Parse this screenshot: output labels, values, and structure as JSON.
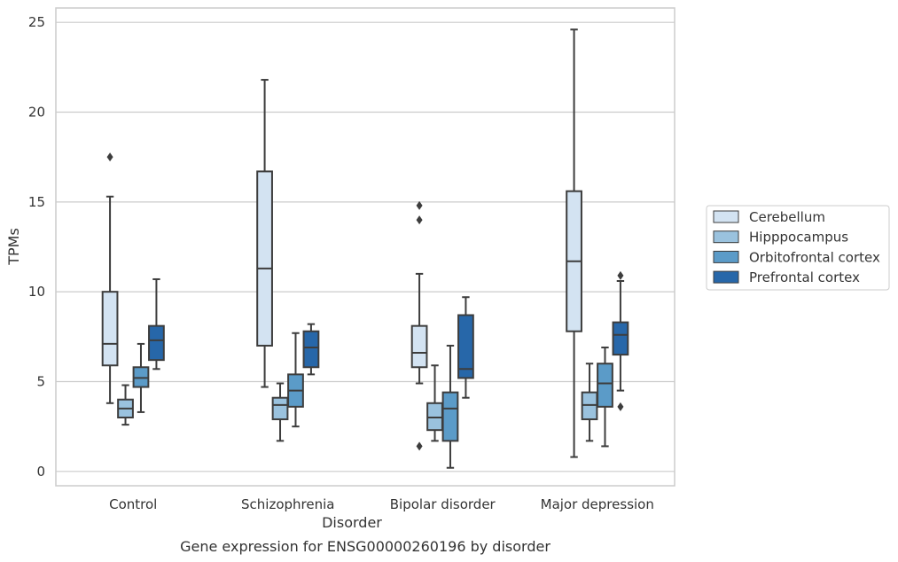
{
  "caption": "Gene expression for ENSG00000260196 by disorder",
  "chart_data": {
    "type": "box",
    "xlabel": "Disorder",
    "ylabel": "TPMs",
    "ylim": [
      -0.8,
      25.8
    ],
    "yticks": [
      0,
      5,
      10,
      15,
      20,
      25
    ],
    "grid": true,
    "legend_placement": "right",
    "categories": [
      "Control",
      "Schizophrenia",
      "Bipolar disorder",
      "Major depression"
    ],
    "series": [
      {
        "name": "Cerebellum",
        "color": "#d3e3f2",
        "boxes": [
          {
            "whislo": 3.8,
            "q1": 5.9,
            "med": 7.1,
            "q3": 10.0,
            "whishi": 15.3,
            "fliers": [
              17.5
            ]
          },
          {
            "whislo": 4.7,
            "q1": 7.0,
            "med": 11.3,
            "q3": 16.7,
            "whishi": 21.8,
            "fliers": []
          },
          {
            "whislo": 4.9,
            "q1": 5.8,
            "med": 6.6,
            "q3": 8.1,
            "whishi": 11.0,
            "fliers": [
              14.8,
              14.0,
              1.4
            ]
          },
          {
            "whislo": 0.8,
            "q1": 7.8,
            "med": 11.7,
            "q3": 15.6,
            "whishi": 24.6,
            "fliers": []
          }
        ]
      },
      {
        "name": "Hipppocampus",
        "color": "#9ac2de",
        "boxes": [
          {
            "whislo": 2.6,
            "q1": 3.0,
            "med": 3.5,
            "q3": 4.0,
            "whishi": 4.8,
            "fliers": []
          },
          {
            "whislo": 1.7,
            "q1": 2.9,
            "med": 3.7,
            "q3": 4.1,
            "whishi": 4.9,
            "fliers": []
          },
          {
            "whislo": 1.7,
            "q1": 2.3,
            "med": 3.0,
            "q3": 3.8,
            "whishi": 5.9,
            "fliers": []
          },
          {
            "whislo": 1.7,
            "q1": 2.9,
            "med": 3.7,
            "q3": 4.4,
            "whishi": 6.0,
            "fliers": []
          }
        ]
      },
      {
        "name": "Orbitofrontal cortex",
        "color": "#5b9bc8",
        "boxes": [
          {
            "whislo": 3.3,
            "q1": 4.7,
            "med": 5.2,
            "q3": 5.8,
            "whishi": 7.1,
            "fliers": []
          },
          {
            "whislo": 2.5,
            "q1": 3.6,
            "med": 4.5,
            "q3": 5.4,
            "whishi": 7.7,
            "fliers": []
          },
          {
            "whislo": 0.2,
            "q1": 1.7,
            "med": 3.5,
            "q3": 4.4,
            "whishi": 7.0,
            "fliers": []
          },
          {
            "whislo": 1.4,
            "q1": 3.6,
            "med": 4.9,
            "q3": 6.0,
            "whishi": 6.9,
            "fliers": []
          }
        ]
      },
      {
        "name": "Prefrontal cortex",
        "color": "#2767a9",
        "boxes": [
          {
            "whislo": 5.7,
            "q1": 6.2,
            "med": 7.3,
            "q3": 8.1,
            "whishi": 10.7,
            "fliers": []
          },
          {
            "whislo": 5.4,
            "q1": 5.8,
            "med": 6.9,
            "q3": 7.8,
            "whishi": 8.2,
            "fliers": []
          },
          {
            "whislo": 4.1,
            "q1": 5.2,
            "med": 5.7,
            "q3": 8.7,
            "whishi": 9.7,
            "fliers": []
          },
          {
            "whislo": 4.5,
            "q1": 6.5,
            "med": 7.6,
            "q3": 8.3,
            "whishi": 10.6,
            "fliers": [
              10.9,
              3.6
            ]
          }
        ]
      }
    ]
  }
}
